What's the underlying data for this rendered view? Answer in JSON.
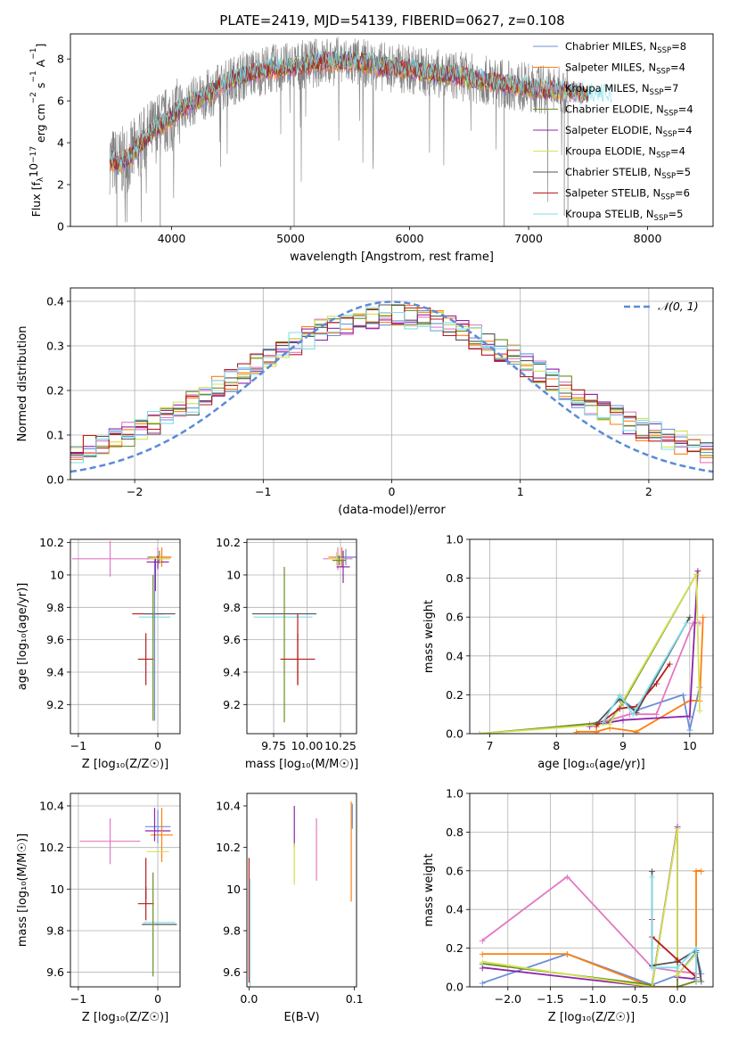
{
  "figure": {
    "title": "PLATE=2419, MJD=54139, FIBERID=0627, z=0.108"
  },
  "chart_data": [
    {
      "id": "spectrum",
      "type": "line",
      "xlabel": "wavelength [Angstrom, rest frame]",
      "ylabel_parts": [
        "Flux [f",
        "λ",
        "10",
        "−17",
        " erg cm",
        "−2",
        " s",
        "−1",
        " A",
        "−1",
        "]"
      ],
      "xlim": [
        3150,
        8550
      ],
      "ylim": [
        0,
        9.2
      ],
      "xticks": [
        4000,
        5000,
        6000,
        7000,
        8000
      ],
      "yticks": [
        0,
        2,
        4,
        6,
        8
      ],
      "grid": false,
      "legend_position": "right",
      "legend": [
        {
          "label": "Chabrier MILES, N",
          "sub": "SSP",
          "suffix": "=8",
          "color": "#6a8fd8"
        },
        {
          "label": "Salpeter MILES, N",
          "sub": "SSP",
          "suffix": "=4",
          "color": "#ff7f0e"
        },
        {
          "label": "Kroupa MILES, N",
          "sub": "SSP",
          "suffix": "=7",
          "color": "#e377c2"
        },
        {
          "label": "Chabrier ELODIE, N",
          "sub": "SSP",
          "suffix": "=4",
          "color": "#6b8e23"
        },
        {
          "label": "Salpeter ELODIE, N",
          "sub": "SSP",
          "suffix": "=4",
          "color": "#8e24aa"
        },
        {
          "label": "Kroupa ELODIE, N",
          "sub": "SSP",
          "suffix": "=4",
          "color": "#d4e157"
        },
        {
          "label": "Chabrier STELIB, N",
          "sub": "SSP",
          "suffix": "=5",
          "color": "#555555"
        },
        {
          "label": "Salpeter STELIB, N",
          "sub": "SSP",
          "suffix": "=6",
          "color": "#b71c1c"
        },
        {
          "label": "Kroupa STELIB, N",
          "sub": "SSP",
          "suffix": "=5",
          "color": "#80deea"
        }
      ],
      "observed_color": "#808080",
      "continuum": [
        [
          3480,
          3.2
        ],
        [
          3550,
          3.0
        ],
        [
          3650,
          3.3
        ],
        [
          3750,
          4.0
        ],
        [
          3850,
          4.6
        ],
        [
          3950,
          5.0
        ],
        [
          4050,
          5.5
        ],
        [
          4150,
          5.9
        ],
        [
          4300,
          6.3
        ],
        [
          4450,
          6.8
        ],
        [
          4600,
          7.2
        ],
        [
          4800,
          7.5
        ],
        [
          5000,
          7.6
        ],
        [
          5200,
          7.8
        ],
        [
          5400,
          7.9
        ],
        [
          5600,
          7.8
        ],
        [
          5800,
          7.6
        ],
        [
          6000,
          7.5
        ],
        [
          6200,
          7.3
        ],
        [
          6400,
          7.2
        ],
        [
          6600,
          7.0
        ],
        [
          6800,
          6.8
        ],
        [
          7000,
          6.6
        ],
        [
          7200,
          6.5
        ],
        [
          7400,
          6.4
        ],
        [
          7700,
          6.2
        ],
        [
          8000,
          6.1
        ],
        [
          8300,
          6.0
        ]
      ]
    },
    {
      "id": "residuals",
      "type": "line",
      "xlabel": "(data-model)/error",
      "ylabel": "Normed distribution",
      "xlim": [
        -2.5,
        2.5
      ],
      "ylim": [
        0,
        0.43
      ],
      "xticks": [
        -2,
        -1,
        0,
        1,
        2
      ],
      "yticks": [
        0.0,
        0.1,
        0.2,
        0.3,
        0.4
      ],
      "ytick_labels": [
        "0.0",
        "0.1",
        "0.2",
        "0.3",
        "0.4"
      ],
      "grid": true,
      "legend_position": "top-right",
      "gaussian_label": "𝒩(0, 1)",
      "gaussian_color": "#5b8bd8",
      "bin_width": 0.1,
      "hist_colors": [
        "#6a8fd8",
        "#ff7f0e",
        "#e377c2",
        "#6b8e23",
        "#8e24aa",
        "#d4e157",
        "#555555",
        "#b71c1c",
        "#80deea"
      ]
    },
    {
      "id": "age-vs-Z",
      "type": "scatter",
      "xlabel": "Z [log₁₀(Z/Z☉)]",
      "ylabel": "age  [log₁₀(age/yr)]",
      "xlim": [
        -1.1,
        0.28
      ],
      "ylim": [
        9.02,
        10.22
      ],
      "xticks": [
        -1,
        0
      ],
      "yticks": [
        9.2,
        9.4,
        9.6,
        9.8,
        10.0,
        10.2
      ],
      "grid": true,
      "points": [
        {
          "x": -0.6,
          "y": 10.1,
          "xerr": 0.48,
          "yerr": 0.11,
          "color": "#e377c2"
        },
        {
          "x": -0.15,
          "y": 9.48,
          "xerr": 0.1,
          "yerr": 0.16,
          "color": "#b71c1c"
        },
        {
          "x": -0.12,
          "y": 9.76,
          "xerr": 0.0,
          "yerr": 0.0,
          "color": "#b71c1c"
        },
        {
          "x": 0.02,
          "y": 9.76,
          "xerr": 0.2,
          "yerr": 0.0,
          "color": "#555555"
        },
        {
          "x": -0.04,
          "y": 9.74,
          "xerr": 0.2,
          "yerr": 0.0,
          "color": "#80deea"
        },
        {
          "x": -0.06,
          "y": 9.55,
          "xerr": 0.0,
          "yerr": 0.45,
          "color": "#6b8e23"
        },
        {
          "x": -0.04,
          "y": 9.6,
          "xerr": 0.0,
          "yerr": 0.5,
          "color": "#6a8fd8"
        },
        {
          "x": 0.0,
          "y": 10.1,
          "xerr": 0.15,
          "yerr": 0.07,
          "color": "#e377c2"
        },
        {
          "x": 0.02,
          "y": 10.11,
          "xerr": 0.15,
          "yerr": 0.04,
          "color": "#6b8e23"
        },
        {
          "x": 0.05,
          "y": 10.11,
          "xerr": 0.12,
          "yerr": 0.06,
          "color": "#ff7f0e"
        },
        {
          "x": 0.0,
          "y": 10.08,
          "xerr": 0.14,
          "yerr": 0.04,
          "color": "#8e24aa"
        },
        {
          "x": 0.03,
          "y": 10.1,
          "xerr": 0.13,
          "yerr": 0.03,
          "color": "#d4e157"
        },
        {
          "x": -0.03,
          "y": 10.0,
          "xerr": 0.0,
          "yerr": 0.1,
          "color": "#8e24aa"
        }
      ]
    },
    {
      "id": "age-vs-mass",
      "type": "scatter",
      "xlabel": "mass [log₁₀(M/M☉)]",
      "xlim": [
        9.55,
        10.37
      ],
      "ylim": [
        9.02,
        10.22
      ],
      "xticks": [
        9.75,
        10.0,
        10.25
      ],
      "xtick_labels": [
        "9.75",
        "10.00",
        "10.25"
      ],
      "yticks": [
        9.2,
        9.4,
        9.6,
        9.8,
        10.0,
        10.2
      ],
      "grid": true,
      "points": [
        {
          "x": 9.83,
          "y": 9.76,
          "xerr": 0.24,
          "yerr": 0.0,
          "color": "#555555"
        },
        {
          "x": 9.82,
          "y": 9.74,
          "xerr": 0.22,
          "yerr": 0.0,
          "color": "#80deea"
        },
        {
          "x": 9.83,
          "y": 9.57,
          "xerr": 0.0,
          "yerr": 0.48,
          "color": "#6b8e23"
        },
        {
          "x": 9.93,
          "y": 9.48,
          "xerr": 0.13,
          "yerr": 0.16,
          "color": "#b71c1c"
        },
        {
          "x": 9.93,
          "y": 9.54,
          "xerr": 0.0,
          "yerr": 0.22,
          "color": "#b71c1c"
        },
        {
          "x": 10.23,
          "y": 10.1,
          "xerr": 0.11,
          "yerr": 0.07,
          "color": "#e377c2"
        },
        {
          "x": 10.26,
          "y": 10.11,
          "xerr": 0.1,
          "yerr": 0.06,
          "color": "#ff7f0e"
        },
        {
          "x": 10.29,
          "y": 10.11,
          "xerr": 0.08,
          "yerr": 0.05,
          "color": "#6a8fd8"
        },
        {
          "x": 10.27,
          "y": 10.05,
          "xerr": 0.05,
          "yerr": 0.1,
          "color": "#8e24aa"
        },
        {
          "x": 10.22,
          "y": 10.1,
          "xerr": 0.06,
          "yerr": 0.04,
          "color": "#d4e157"
        },
        {
          "x": 10.24,
          "y": 10.09,
          "xerr": 0.05,
          "yerr": 0.03,
          "color": "#6b8e23"
        }
      ]
    },
    {
      "id": "massweight-vs-age",
      "type": "line",
      "xlabel": "age  [log₁₀(age/yr)]",
      "ylabel": "mass weight",
      "xlim": [
        6.7,
        10.35
      ],
      "ylim": [
        0,
        1.0
      ],
      "xticks": [
        7,
        8,
        9,
        10
      ],
      "yticks": [
        0.0,
        0.2,
        0.4,
        0.6,
        0.8,
        1.0
      ],
      "ytick_labels": [
        "0.0",
        "0.2",
        "0.4",
        "0.6",
        "0.8",
        "1.0"
      ],
      "grid": true,
      "series": [
        {
          "color": "#6a8fd8",
          "x": [
            8.6,
            8.8,
            9.0,
            9.2,
            9.9,
            10.0,
            10.15
          ],
          "y": [
            0.05,
            0.06,
            0.17,
            0.12,
            0.2,
            0.02,
            0.24
          ]
        },
        {
          "color": "#ff7f0e",
          "x": [
            8.3,
            8.6,
            8.8,
            9.2,
            10.0,
            10.15,
            10.2
          ],
          "y": [
            0.01,
            0.01,
            0.03,
            0.01,
            0.17,
            0.17,
            0.6
          ]
        },
        {
          "color": "#e377c2",
          "x": [
            8.5,
            8.8,
            9.1,
            9.5,
            10.05,
            10.15
          ],
          "y": [
            0.05,
            0.07,
            0.1,
            0.1,
            0.57,
            0.57
          ]
        },
        {
          "color": "#6b8e23",
          "x": [
            6.85,
            8.8,
            9.0,
            10.1
          ],
          "y": [
            0.0,
            0.06,
            0.16,
            0.82
          ]
        },
        {
          "color": "#8e24aa",
          "x": [
            8.5,
            9.0,
            10.0,
            10.12
          ],
          "y": [
            0.04,
            0.07,
            0.09,
            0.84
          ]
        },
        {
          "color": "#d4e157",
          "x": [
            6.85,
            8.8,
            9.0,
            10.1,
            10.15
          ],
          "y": [
            0.0,
            0.05,
            0.17,
            0.82,
            0.12
          ]
        },
        {
          "color": "#555555",
          "x": [
            8.6,
            8.95,
            9.2,
            10.0
          ],
          "y": [
            0.05,
            0.18,
            0.11,
            0.6
          ]
        },
        {
          "color": "#b71c1c",
          "x": [
            8.6,
            8.95,
            9.2,
            9.5,
            9.7
          ],
          "y": [
            0.04,
            0.13,
            0.14,
            0.26,
            0.36
          ]
        },
        {
          "color": "#80deea",
          "x": [
            8.7,
            8.95,
            9.15,
            9.95
          ],
          "y": [
            0.06,
            0.2,
            0.1,
            0.57
          ]
        }
      ]
    },
    {
      "id": "mass-vs-Z",
      "type": "scatter",
      "xlabel": "Z [log₁₀(Z/Z☉)]",
      "ylabel": "mass [log₁₀(M/M☉)]",
      "xlim": [
        -1.1,
        0.28
      ],
      "ylim": [
        9.53,
        10.46
      ],
      "xticks": [
        -1,
        0
      ],
      "yticks": [
        9.6,
        9.8,
        10.0,
        10.2,
        10.4
      ],
      "grid": true,
      "points": [
        {
          "x": -0.6,
          "y": 10.23,
          "xerr": 0.38,
          "yerr": 0.11,
          "color": "#e377c2"
        },
        {
          "x": -0.15,
          "y": 9.93,
          "xerr": 0.1,
          "yerr": 0.08,
          "color": "#b71c1c"
        },
        {
          "x": -0.15,
          "y": 10.05,
          "xerr": 0.0,
          "yerr": 0.1,
          "color": "#b71c1c"
        },
        {
          "x": 0.02,
          "y": 9.83,
          "xerr": 0.22,
          "yerr": 0.0,
          "color": "#555555"
        },
        {
          "x": 0.02,
          "y": 9.84,
          "xerr": 0.2,
          "yerr": 0.0,
          "color": "#80deea"
        },
        {
          "x": -0.06,
          "y": 9.83,
          "xerr": 0.0,
          "yerr": 0.25,
          "color": "#6b8e23"
        },
        {
          "x": 0.0,
          "y": 10.3,
          "xerr": 0.16,
          "yerr": 0.08,
          "color": "#6a8fd8"
        },
        {
          "x": 0.0,
          "y": 10.28,
          "xerr": 0.16,
          "yerr": 0.0,
          "color": "#8e24aa"
        },
        {
          "x": 0.05,
          "y": 10.26,
          "xerr": 0.14,
          "yerr": 0.13,
          "color": "#ff7f0e"
        },
        {
          "x": 0.0,
          "y": 10.18,
          "xerr": 0.14,
          "yerr": 0.0,
          "color": "#d4e157"
        },
        {
          "x": -0.04,
          "y": 10.31,
          "xerr": 0.0,
          "yerr": 0.08,
          "color": "#8e24aa"
        }
      ]
    },
    {
      "id": "mass-vs-EBV",
      "type": "scatter",
      "xlabel": "E(B-V)",
      "xlim": [
        -0.002,
        0.102
      ],
      "ylim": [
        9.53,
        10.46
      ],
      "xticks": [
        0.0,
        0.1
      ],
      "xtick_labels": [
        "0.0",
        "0.1"
      ],
      "yticks": [
        9.6,
        9.8,
        10.0,
        10.2,
        10.4
      ],
      "grid": false,
      "points": [
        {
          "x": 0.0,
          "y": 9.85,
          "xerr": 0.0,
          "yerr": 0.3,
          "color": "#b71c1c"
        },
        {
          "x": 0.001,
          "y": 9.7,
          "xerr": 0.0,
          "yerr": 0.35,
          "color": "#80deea"
        },
        {
          "x": 0.043,
          "y": 10.3,
          "xerr": 0.0,
          "yerr": 0.1,
          "color": "#8e24aa"
        },
        {
          "x": 0.043,
          "y": 10.12,
          "xerr": 0.0,
          "yerr": 0.1,
          "color": "#d4e157"
        },
        {
          "x": 0.064,
          "y": 10.19,
          "xerr": 0.0,
          "yerr": 0.15,
          "color": "#e377c2"
        },
        {
          "x": 0.097,
          "y": 10.18,
          "xerr": 0.0,
          "yerr": 0.24,
          "color": "#ff7f0e"
        },
        {
          "x": 0.098,
          "y": 10.35,
          "xerr": 0.0,
          "yerr": 0.06,
          "color": "#6a8fd8"
        }
      ]
    },
    {
      "id": "massweight-vs-Z",
      "type": "line",
      "xlabel": "Z [log₁₀(Z/Z☉)]",
      "ylabel": "mass weight",
      "xlim": [
        -2.45,
        0.42
      ],
      "ylim": [
        0,
        1.0
      ],
      "xticks": [
        -2.0,
        -1.5,
        -1.0,
        -0.5,
        0.0
      ],
      "xtick_labels": [
        "−2.0",
        "−1.5",
        "−1.0",
        "−0.5",
        "0.0"
      ],
      "yticks": [
        0.0,
        0.2,
        0.4,
        0.6,
        0.8,
        1.0
      ],
      "ytick_labels": [
        "0.0",
        "0.2",
        "0.4",
        "0.6",
        "0.8",
        "1.0"
      ],
      "grid": true,
      "series": [
        {
          "color": "#6a8fd8",
          "x": [
            -2.3,
            -1.3,
            -0.3,
            0.0,
            0.22,
            0.28
          ],
          "y": [
            0.02,
            0.17,
            0.01,
            0.06,
            0.18,
            0.07
          ]
        },
        {
          "color": "#ff7f0e",
          "x": [
            -2.3,
            -1.3,
            -0.3,
            0.0,
            0.22,
            0.22,
            0.28
          ],
          "y": [
            0.17,
            0.17,
            0.0,
            0.0,
            0.03,
            0.6,
            0.6
          ]
        },
        {
          "color": "#e377c2",
          "x": [
            -2.3,
            -1.3,
            -0.3,
            0.0,
            0.22
          ],
          "y": [
            0.24,
            0.57,
            0.1,
            0.08,
            0.07
          ]
        },
        {
          "color": "#6b8e23",
          "x": [
            -2.3,
            -0.3,
            0.0,
            0.0,
            0.22
          ],
          "y": [
            0.12,
            0.01,
            0.82,
            0.0,
            0.03
          ]
        },
        {
          "color": "#8e24aa",
          "x": [
            -2.3,
            -0.3,
            0.0,
            0.0,
            0.22
          ],
          "y": [
            0.1,
            0.0,
            0.83,
            0.05,
            0.04
          ]
        },
        {
          "color": "#d4e157",
          "x": [
            -2.3,
            -0.3,
            0.0,
            0.0,
            0.22
          ],
          "y": [
            0.13,
            0.0,
            0.82,
            0.06,
            0.17
          ]
        },
        {
          "color": "#555555",
          "x": [
            -0.3,
            -0.3,
            0.0,
            0.22,
            0.28
          ],
          "y": [
            0.6,
            0.11,
            0.13,
            0.19,
            0.03
          ]
        },
        {
          "color": "#b71c1c",
          "x": [
            -0.3,
            -0.3,
            0.0,
            0.22
          ],
          "y": [
            0.35,
            0.26,
            0.14,
            0.05
          ]
        },
        {
          "color": "#80deea",
          "x": [
            -0.3,
            -0.3,
            0.0,
            0.22,
            0.22
          ],
          "y": [
            0.57,
            0.1,
            0.1,
            0.2,
            0.04
          ]
        }
      ]
    }
  ]
}
